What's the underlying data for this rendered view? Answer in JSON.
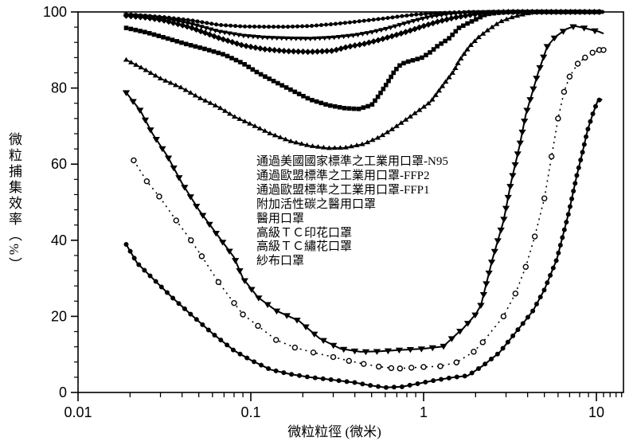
{
  "figure": {
    "background": "#ffffff",
    "ink": "#000000"
  },
  "chart_data": {
    "type": "scatter",
    "title": "",
    "xlabel": "微粒粒徑 (微米)",
    "ylabel": "微粒捕集效率（%）",
    "x_scale": "log",
    "xlim": [
      0.01,
      14.5
    ],
    "ylim": [
      0,
      100
    ],
    "grid": false,
    "legend_position": "inside-center",
    "x_ticks": [
      {
        "v": 0.01,
        "label": "0.01"
      },
      {
        "v": 0.1,
        "label": "0.1"
      },
      {
        "v": 1,
        "label": "1"
      },
      {
        "v": 10,
        "label": "10"
      }
    ],
    "y_ticks": [
      {
        "v": 0,
        "label": "0"
      },
      {
        "v": 20,
        "label": "20"
      },
      {
        "v": 40,
        "label": "40"
      },
      {
        "v": 60,
        "label": "60"
      },
      {
        "v": 80,
        "label": "80"
      },
      {
        "v": 100,
        "label": "100"
      }
    ],
    "y_minor_step": 4,
    "series": [
      {
        "name": "通過美國國家標準之工業用口罩-N95",
        "style": {
          "marker": "circle",
          "open": false,
          "size": 4,
          "line": "solid",
          "width": 2,
          "dense": 6
        },
        "x": [
          0.019,
          0.025,
          0.032,
          0.045,
          0.065,
          0.09,
          0.12,
          0.16,
          0.22,
          0.3,
          0.4,
          0.5,
          0.62,
          0.75,
          0.9,
          1.1,
          1.4,
          1.8,
          2.4,
          3.2,
          4.5,
          6,
          8,
          9.5,
          11
        ],
        "y": [
          99.4,
          99.0,
          98.6,
          97.8,
          96.6,
          96.2,
          96.1,
          96.1,
          96.3,
          96.8,
          97.4,
          97.9,
          98.4,
          98.9,
          99.3,
          99.6,
          99.8,
          100,
          100,
          100,
          100,
          100,
          100,
          100,
          100
        ]
      },
      {
        "name": "通過歐盟標準之工業用口罩-FFP2",
        "style": {
          "marker": "triangle-down",
          "open": false,
          "size": 4.6,
          "line": "solid",
          "width": 2,
          "dense": 6
        },
        "x": [
          0.019,
          0.025,
          0.032,
          0.045,
          0.065,
          0.09,
          0.12,
          0.16,
          0.22,
          0.3,
          0.4,
          0.5,
          0.62,
          0.75,
          0.9,
          1.1,
          1.4,
          1.8,
          2.4,
          3.2,
          4.5,
          6,
          8,
          9.5,
          11
        ],
        "y": [
          99.2,
          98.8,
          98.3,
          96.9,
          94.9,
          93.8,
          93.3,
          93.1,
          93.0,
          93.3,
          93.9,
          94.7,
          95.7,
          96.8,
          97.8,
          98.8,
          99.5,
          99.9,
          100,
          100,
          100,
          100,
          100,
          100,
          100
        ]
      },
      {
        "name": "通過歐盟標準之工業用口罩-FFP1",
        "style": {
          "marker": "diamond",
          "open": false,
          "size": 5,
          "line": "solid",
          "width": 2,
          "dense": 6
        },
        "x": [
          0.019,
          0.025,
          0.032,
          0.045,
          0.065,
          0.09,
          0.12,
          0.16,
          0.22,
          0.3,
          0.36,
          0.45,
          0.55,
          0.7,
          0.85,
          1.0,
          1.2,
          1.5,
          1.9,
          2.4,
          3.0,
          4,
          5.5,
          7.5,
          9.5,
          11
        ],
        "y": [
          99.0,
          98.5,
          97.7,
          95.9,
          93.2,
          91.2,
          90.2,
          89.7,
          89.5,
          89.8,
          90.8,
          91.6,
          92.6,
          94.0,
          95.2,
          96.3,
          97.4,
          98.5,
          99.3,
          99.8,
          100,
          100,
          100,
          100,
          100,
          100
        ]
      },
      {
        "name": "附加活性碳之醫用口罩",
        "style": {
          "marker": "square",
          "open": false,
          "size": 4.6,
          "line": "solid",
          "width": 2,
          "dense": 6
        },
        "x": [
          0.019,
          0.025,
          0.032,
          0.042,
          0.055,
          0.07,
          0.09,
          0.11,
          0.14,
          0.18,
          0.22,
          0.28,
          0.35,
          0.42,
          0.5,
          0.55,
          0.62,
          0.68,
          0.74,
          0.82,
          0.9,
          0.98,
          1.1,
          1.2,
          1.4,
          1.6,
          1.8,
          2.0,
          2.3,
          2.7,
          3.2,
          4,
          5,
          6.5,
          8,
          9.5,
          11
        ],
        "y": [
          95.8,
          94.6,
          93.2,
          91.6,
          90.2,
          88.8,
          86.5,
          84.0,
          81.5,
          79.0,
          77.0,
          75.5,
          74.7,
          74.5,
          75.5,
          78.0,
          81.5,
          84.5,
          86.3,
          87.0,
          87.5,
          88.0,
          89.5,
          91.0,
          93.0,
          95.8,
          97.0,
          98.0,
          99.4,
          99.8,
          100,
          100,
          100,
          100,
          100,
          100,
          100
        ]
      },
      {
        "name": "醫用口罩",
        "style": {
          "marker": "triangle-up",
          "open": false,
          "size": 4.6,
          "line": "solid",
          "width": 1.8,
          "dense": 7
        },
        "x": [
          0.019,
          0.024,
          0.03,
          0.04,
          0.05,
          0.065,
          0.08,
          0.1,
          0.13,
          0.17,
          0.22,
          0.28,
          0.35,
          0.45,
          0.55,
          0.65,
          0.78,
          0.9,
          1.0,
          1.1,
          1.2,
          1.35,
          1.5,
          1.6,
          1.75,
          1.85,
          2.1,
          2.4,
          2.8,
          3.3,
          3.9,
          4.5,
          5.5,
          7,
          9,
          11
        ],
        "y": [
          87.4,
          85.0,
          82.5,
          80.0,
          77.5,
          75.0,
          72.5,
          70.5,
          68.0,
          66.0,
          64.8,
          64.2,
          64.3,
          65.3,
          67.0,
          69.0,
          71.5,
          73.5,
          75.0,
          76.4,
          78.7,
          81.8,
          84.5,
          87.0,
          89.5,
          91.0,
          93.5,
          95.5,
          97.5,
          98.7,
          99.5,
          100,
          100,
          100,
          100,
          100
        ]
      },
      {
        "name": "高級ＴＣ印花口罩",
        "style": {
          "marker": "triangle-down",
          "open": false,
          "size": 6.5,
          "line": "solid",
          "width": 2,
          "dense": 14
        },
        "x": [
          0.019,
          0.023,
          0.027,
          0.033,
          0.04,
          0.05,
          0.065,
          0.08,
          0.09,
          0.11,
          0.14,
          0.19,
          0.25,
          0.33,
          0.43,
          0.55,
          0.75,
          1.0,
          1.3,
          1.55,
          1.7,
          2.0,
          2.15,
          2.5,
          2.9,
          3.2,
          3.6,
          3.9,
          4.6,
          5.2,
          5.8,
          6.7,
          7.5,
          8.5,
          9.5,
          10.4,
          11
        ],
        "y": [
          78.8,
          74.0,
          68.0,
          62.0,
          55.0,
          48.0,
          41.0,
          35.5,
          30.0,
          25.0,
          21.5,
          18.8,
          14.2,
          11.5,
          10.7,
          10.8,
          11.2,
          11.5,
          12.1,
          15.3,
          16.9,
          20.5,
          23.0,
          35.0,
          45.0,
          55.0,
          65.0,
          73.0,
          84.0,
          91.0,
          93.5,
          95.5,
          96.3,
          95.8,
          95.2,
          94.8,
          94.3
        ]
      },
      {
        "name": "高級ＴＣ繡花口罩",
        "style": {
          "marker": "circle",
          "open": true,
          "size": 6,
          "line": "dotted",
          "width": 1.6,
          "dense": 0
        },
        "x": [
          0.021,
          0.025,
          0.0295,
          0.037,
          0.045,
          0.052,
          0.065,
          0.08,
          0.09,
          0.11,
          0.14,
          0.18,
          0.23,
          0.3,
          0.37,
          0.45,
          0.55,
          0.65,
          0.73,
          0.85,
          1.0,
          1.25,
          1.55,
          1.95,
          2.2,
          2.9,
          3.4,
          3.9,
          4.4,
          5.0,
          5.5,
          6.0,
          6.5,
          7.0,
          7.8,
          8.6,
          9.5,
          10.4,
          11
        ],
        "y": [
          61.0,
          55.5,
          51.5,
          45.2,
          40.0,
          35.8,
          29.0,
          23.5,
          20.5,
          17.5,
          13.8,
          11.8,
          10.5,
          9.3,
          8.3,
          7.5,
          6.8,
          6.4,
          6.3,
          6.5,
          6.7,
          6.9,
          7.9,
          10.7,
          13.2,
          20.0,
          26.0,
          33.0,
          41.0,
          51.0,
          62.0,
          72.0,
          79.0,
          83.0,
          86.4,
          88.0,
          89.3,
          90.0,
          90.0
        ]
      },
      {
        "name": "紗布口罩",
        "style": {
          "marker": "circle",
          "open": false,
          "size": 5,
          "line": "solid",
          "width": 2,
          "dense": 10
        },
        "x": [
          0.019,
          0.022,
          0.028,
          0.035,
          0.045,
          0.06,
          0.08,
          0.1,
          0.13,
          0.17,
          0.22,
          0.3,
          0.4,
          0.5,
          0.6,
          0.75,
          0.9,
          1.05,
          1.2,
          1.5,
          1.8,
          2.2,
          2.75,
          3.25,
          3.8,
          4.3,
          5.0,
          5.9,
          6.9,
          7.7,
          8.3,
          8.9,
          9.5,
          10.2,
          10.8
        ],
        "y": [
          38.9,
          34.0,
          29.3,
          25.0,
          20.5,
          15.5,
          11.0,
          8.5,
          6.0,
          4.8,
          4.0,
          3.3,
          2.6,
          1.8,
          1.3,
          1.5,
          2.2,
          2.8,
          3.3,
          4.0,
          4.4,
          7.0,
          10.5,
          14.6,
          18.4,
          21.5,
          27.0,
          35.0,
          47.0,
          57.0,
          63.0,
          69.0,
          73.0,
          76.8,
          77.0
        ]
      }
    ]
  }
}
